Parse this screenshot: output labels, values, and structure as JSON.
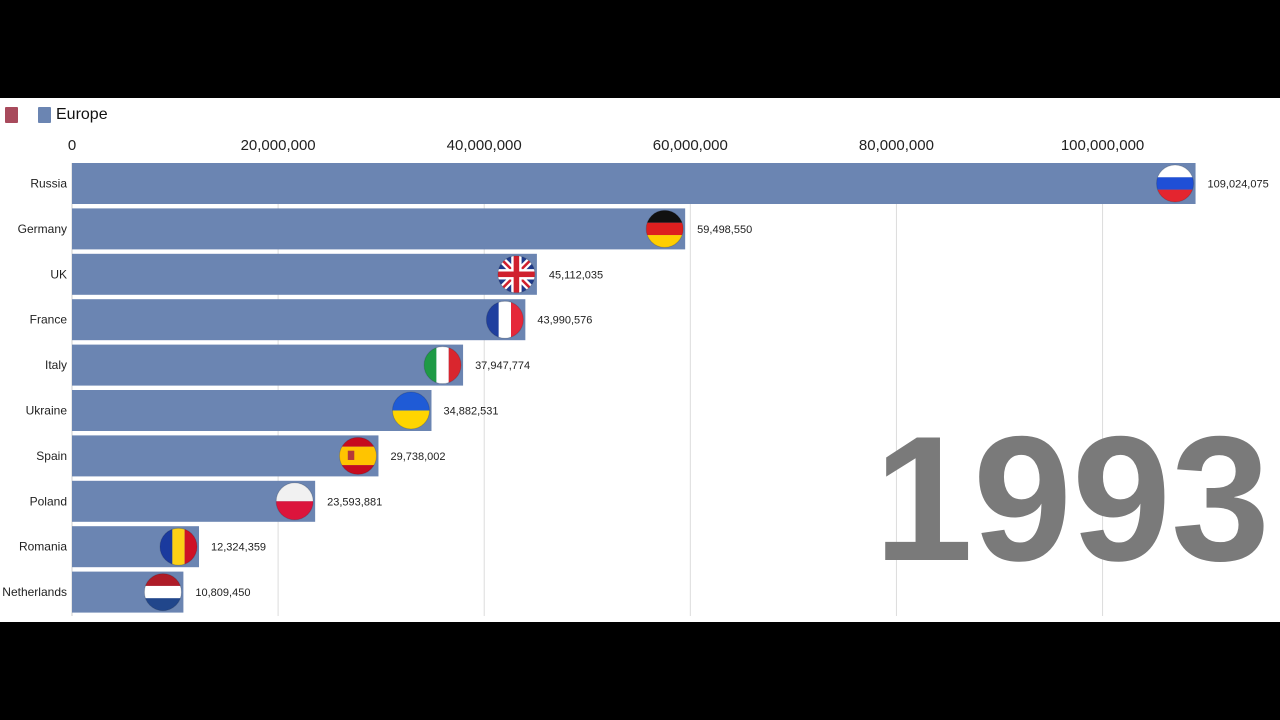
{
  "legend": {
    "items": [
      {
        "label": "",
        "color": "#a84a5c"
      },
      {
        "label": "Europe",
        "color": "#6b85b2"
      }
    ]
  },
  "chart_data": {
    "type": "bar",
    "orientation": "horizontal",
    "title": "",
    "xlabel": "",
    "ylabel": "",
    "xlim": [
      0,
      108000000
    ],
    "x_ticks": [
      0,
      20000000,
      40000000,
      60000000,
      80000000,
      100000000
    ],
    "x_tick_labels": [
      "0",
      "20,000,000",
      "40,000,000",
      "60,000,000",
      "80,000,000",
      "100,000,000"
    ],
    "grid": true,
    "legend_position": "top-left",
    "series": [
      {
        "name": "Europe",
        "color": "#6b85b2"
      }
    ],
    "categories": [
      "Russia",
      "Germany",
      "UK",
      "France",
      "Italy",
      "Ukraine",
      "Spain",
      "Poland",
      "Romania",
      "Netherlands"
    ],
    "values": [
      109024075,
      59498550,
      45112035,
      43990576,
      37947774,
      34882531,
      29738002,
      23593881,
      12324359,
      10809450
    ],
    "value_labels": [
      "109,024,075",
      "59,498,550",
      "45,112,035",
      "43,990,576",
      "37,947,774",
      "34,882,531",
      "29,738,002",
      "23,593,881",
      "12,324,359",
      "10,809,450"
    ],
    "flag_icons": [
      "russia-flag-icon",
      "germany-flag-icon",
      "uk-flag-icon",
      "france-flag-icon",
      "italy-flag-icon",
      "ukraine-flag-icon",
      "spain-flag-icon",
      "poland-flag-icon",
      "romania-flag-icon",
      "netherlands-flag-icon"
    ],
    "year": "1993"
  }
}
